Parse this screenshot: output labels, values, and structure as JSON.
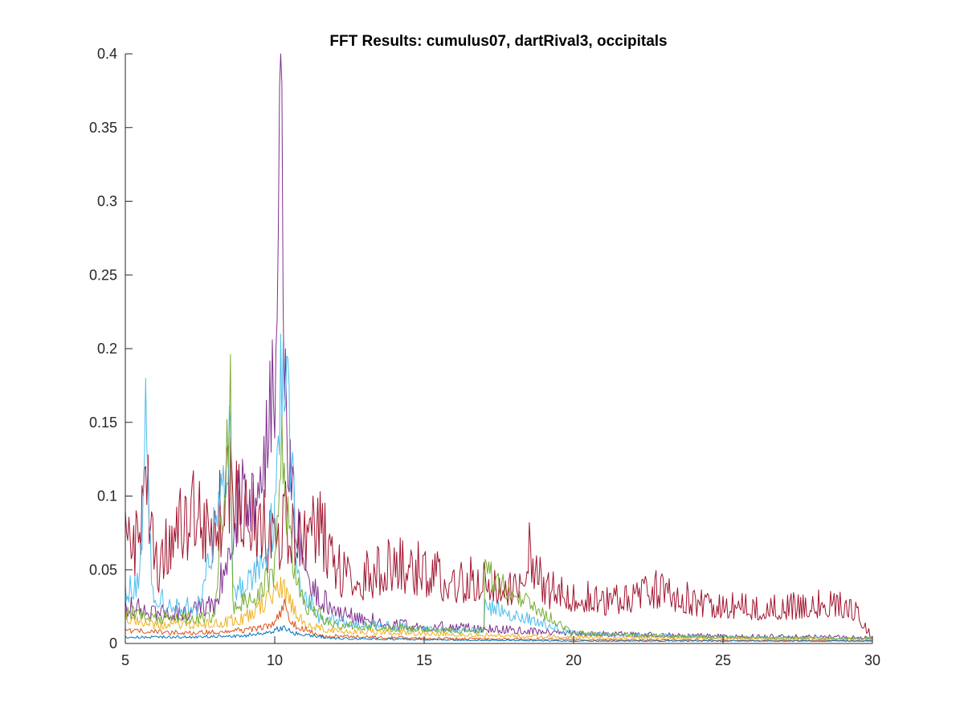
{
  "chart_data": {
    "type": "line",
    "title": "FFT Results: cumulus07, dartRival3, occipitals",
    "xlabel": "",
    "ylabel": "",
    "xlim": [
      5,
      30
    ],
    "ylim": [
      0,
      0.4
    ],
    "x_ticks": [
      5,
      10,
      15,
      20,
      25,
      30
    ],
    "y_ticks": [
      0,
      0.05,
      0.1,
      0.15,
      0.2,
      0.25,
      0.3,
      0.35,
      0.4
    ],
    "x_tick_labels": [
      "5",
      "10",
      "15",
      "20",
      "25",
      "30"
    ],
    "y_tick_labels": [
      "0",
      "0.05",
      "0.1",
      "0.15",
      "0.2",
      "0.25",
      "0.3",
      "0.35",
      "0.4"
    ],
    "grid": false,
    "legend": "none",
    "series": [
      {
        "color": "#A2142F",
        "x": [
          5.0,
          5.3,
          5.6,
          5.75,
          6.0,
          6.5,
          7.0,
          7.5,
          8.0,
          8.5,
          9.0,
          9.5,
          10.0,
          10.3,
          10.6,
          11.0,
          11.6,
          12.0,
          13.0,
          14.0,
          15.0,
          16.0,
          17.0,
          18.0,
          18.5,
          19.0,
          20.0,
          21.0,
          22.0,
          22.9,
          24.0,
          25.0,
          26.0,
          27.0,
          28.0,
          28.7,
          29.5,
          30.0
        ],
        "y": [
          0.09,
          0.08,
          0.1,
          0.128,
          0.06,
          0.08,
          0.1,
          0.11,
          0.09,
          0.14,
          0.1,
          0.095,
          0.085,
          0.1,
          0.095,
          0.09,
          0.095,
          0.06,
          0.055,
          0.065,
          0.06,
          0.05,
          0.055,
          0.045,
          0.082,
          0.045,
          0.04,
          0.035,
          0.04,
          0.045,
          0.035,
          0.032,
          0.03,
          0.03,
          0.032,
          0.034,
          0.025,
          0.005
        ],
        "noise": 0.55
      },
      {
        "color": "#7E2F8E",
        "x": [
          5.0,
          6.0,
          7.0,
          8.0,
          8.9,
          9.5,
          9.7,
          9.9,
          10.05,
          10.15,
          10.25,
          10.35,
          10.6,
          11.0,
          12.0,
          14.0,
          17.0,
          20.0,
          25.0,
          30.0
        ],
        "y": [
          0.03,
          0.025,
          0.025,
          0.03,
          0.125,
          0.12,
          0.165,
          0.206,
          0.2,
          0.377,
          0.38,
          0.2,
          0.12,
          0.05,
          0.025,
          0.015,
          0.012,
          0.008,
          0.006,
          0.005
        ],
        "noise": 0.45
      },
      {
        "color": "#4DBEEE",
        "x": [
          5.0,
          5.5,
          5.7,
          5.9,
          6.5,
          7.5,
          8.5,
          8.6,
          9.5,
          10.0,
          10.2,
          10.4,
          10.8,
          11.5,
          13.0,
          15.0,
          17.0,
          17.05,
          20.0,
          25.0,
          30.0
        ],
        "y": [
          0.04,
          0.05,
          0.18,
          0.04,
          0.03,
          0.03,
          0.15,
          0.04,
          0.06,
          0.1,
          0.21,
          0.195,
          0.05,
          0.02,
          0.015,
          0.012,
          0.01,
          0.03,
          0.008,
          0.005,
          0.004
        ],
        "noise": 0.4
      },
      {
        "color": "#77AC30",
        "x": [
          5.0,
          6.0,
          7.0,
          8.0,
          8.5,
          8.6,
          9.5,
          10.0,
          10.25,
          10.5,
          11.0,
          12.0,
          14.0,
          17.0,
          17.05,
          20.0,
          25.0,
          30.0
        ],
        "y": [
          0.025,
          0.02,
          0.02,
          0.02,
          0.196,
          0.03,
          0.04,
          0.06,
          0.155,
          0.08,
          0.03,
          0.015,
          0.012,
          0.01,
          0.057,
          0.008,
          0.005,
          0.004
        ],
        "noise": 0.4
      },
      {
        "color": "#EDB120",
        "x": [
          5.0,
          6.0,
          7.0,
          8.0,
          9.0,
          9.8,
          10.2,
          10.6,
          11.0,
          12.0,
          15.0,
          20.0,
          25.0,
          30.0
        ],
        "y": [
          0.02,
          0.015,
          0.015,
          0.015,
          0.02,
          0.035,
          0.045,
          0.03,
          0.015,
          0.01,
          0.008,
          0.005,
          0.004,
          0.003
        ],
        "noise": 0.4
      },
      {
        "color": "#D95319",
        "x": [
          5.0,
          7.0,
          9.0,
          10.0,
          10.3,
          10.6,
          11.5,
          15.0,
          20.0,
          30.0
        ],
        "y": [
          0.01,
          0.008,
          0.01,
          0.015,
          0.03,
          0.015,
          0.006,
          0.004,
          0.003,
          0.002
        ],
        "noise": 0.35
      },
      {
        "color": "#0072BD",
        "x": [
          5.0,
          7.0,
          9.0,
          10.0,
          10.3,
          10.6,
          12.0,
          15.0,
          20.0,
          30.0
        ],
        "y": [
          0.005,
          0.005,
          0.006,
          0.01,
          0.012,
          0.008,
          0.004,
          0.003,
          0.002,
          0.002
        ],
        "noise": 0.35
      }
    ]
  }
}
